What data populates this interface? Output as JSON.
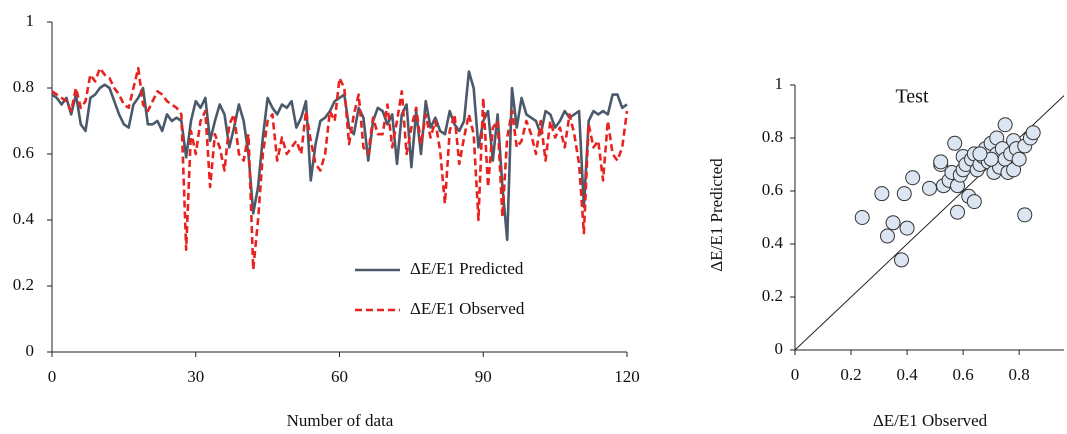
{
  "chart_data": [
    {
      "type": "line",
      "x_label": "Number of data",
      "x": [
        0,
        1,
        2,
        3,
        4,
        5,
        6,
        7,
        8,
        9,
        10,
        11,
        12,
        13,
        14,
        15,
        16,
        17,
        18,
        19,
        20,
        21,
        22,
        23,
        24,
        25,
        26,
        27,
        28,
        29,
        30,
        31,
        32,
        33,
        34,
        35,
        36,
        37,
        38,
        39,
        40,
        41,
        42,
        43,
        44,
        45,
        46,
        47,
        48,
        49,
        50,
        51,
        52,
        53,
        54,
        55,
        56,
        57,
        58,
        59,
        60,
        61,
        62,
        63,
        64,
        65,
        66,
        67,
        68,
        69,
        70,
        71,
        72,
        73,
        74,
        75,
        76,
        77,
        78,
        79,
        80,
        81,
        82,
        83,
        84,
        85,
        86,
        87,
        88,
        89,
        90,
        91,
        92,
        93,
        94,
        95,
        96,
        97,
        98,
        99,
        100,
        101,
        102,
        103,
        104,
        105,
        106,
        107,
        108,
        109,
        110,
        111,
        112,
        113,
        114,
        115,
        116,
        117,
        118,
        119,
        120
      ],
      "xlim": [
        0,
        120
      ],
      "xticks": [
        0,
        30,
        60,
        90,
        120
      ],
      "ylim": [
        0,
        1
      ],
      "yticks": [
        0,
        0.2,
        0.4,
        0.6,
        0.8,
        1
      ],
      "legend": "lower right",
      "series": [
        {
          "name": "ΔE/E1 Predicted",
          "color": "#4b5a6b",
          "line_style": "solid",
          "values": [
            0.78,
            0.77,
            0.75,
            0.77,
            0.72,
            0.78,
            0.69,
            0.67,
            0.77,
            0.78,
            0.8,
            0.81,
            0.8,
            0.76,
            0.72,
            0.69,
            0.68,
            0.75,
            0.77,
            0.8,
            0.69,
            0.69,
            0.7,
            0.67,
            0.72,
            0.7,
            0.71,
            0.7,
            0.59,
            0.7,
            0.76,
            0.74,
            0.77,
            0.64,
            0.7,
            0.75,
            0.72,
            0.62,
            0.68,
            0.75,
            0.7,
            0.6,
            0.42,
            0.5,
            0.65,
            0.77,
            0.74,
            0.72,
            0.75,
            0.74,
            0.76,
            0.68,
            0.71,
            0.76,
            0.52,
            0.63,
            0.7,
            0.71,
            0.73,
            0.76,
            0.77,
            0.78,
            0.68,
            0.66,
            0.74,
            0.71,
            0.58,
            0.7,
            0.74,
            0.73,
            0.69,
            0.72,
            0.57,
            0.72,
            0.75,
            0.56,
            0.73,
            0.6,
            0.76,
            0.68,
            0.71,
            0.67,
            0.66,
            0.73,
            0.69,
            0.67,
            0.7,
            0.85,
            0.8,
            0.62,
            0.7,
            0.73,
            0.58,
            0.72,
            0.5,
            0.34,
            0.8,
            0.68,
            0.77,
            0.72,
            0.71,
            0.7,
            0.66,
            0.73,
            0.72,
            0.68,
            0.7,
            0.73,
            0.71,
            0.72,
            0.73,
            0.44,
            0.7,
            0.73,
            0.72,
            0.73,
            0.72,
            0.78,
            0.78,
            0.74,
            0.75
          ]
        },
        {
          "name": "ΔE/E1 Observed",
          "color": "#e8231f",
          "line_style": "dashed",
          "values": [
            0.79,
            0.78,
            0.77,
            0.76,
            0.73,
            0.8,
            0.74,
            0.76,
            0.84,
            0.82,
            0.86,
            0.84,
            0.83,
            0.8,
            0.78,
            0.75,
            0.74,
            0.8,
            0.86,
            0.75,
            0.73,
            0.76,
            0.79,
            0.78,
            0.76,
            0.75,
            0.74,
            0.72,
            0.31,
            0.67,
            0.6,
            0.7,
            0.73,
            0.5,
            0.66,
            0.62,
            0.55,
            0.69,
            0.72,
            0.6,
            0.58,
            0.66,
            0.25,
            0.4,
            0.6,
            0.7,
            0.72,
            0.58,
            0.65,
            0.6,
            0.62,
            0.64,
            0.6,
            0.73,
            0.64,
            0.57,
            0.55,
            0.6,
            0.73,
            0.7,
            0.83,
            0.8,
            0.63,
            0.72,
            0.78,
            0.62,
            0.6,
            0.71,
            0.66,
            0.66,
            0.75,
            0.62,
            0.7,
            0.79,
            0.6,
            0.68,
            0.74,
            0.63,
            0.72,
            0.65,
            0.7,
            0.61,
            0.45,
            0.67,
            0.72,
            0.57,
            0.65,
            0.72,
            0.66,
            0.4,
            0.77,
            0.5,
            0.68,
            0.7,
            0.41,
            0.65,
            0.73,
            0.62,
            0.64,
            0.7,
            0.66,
            0.6,
            0.7,
            0.58,
            0.7,
            0.65,
            0.68,
            0.62,
            0.72,
            0.66,
            0.57,
            0.36,
            0.69,
            0.62,
            0.64,
            0.52,
            0.7,
            0.6,
            0.58,
            0.62,
            0.73
          ]
        }
      ]
    },
    {
      "type": "scatter",
      "title": "Test",
      "x_label": "ΔE/E1  Observed",
      "y_label": "ΔE/E1  Predicted",
      "color": "#dce6f2",
      "edge_color": "#333333",
      "xlim": [
        0,
        0.96
      ],
      "xticks": [
        0,
        0.2,
        0.4,
        0.6,
        0.8
      ],
      "ylim": [
        0,
        1
      ],
      "yticks": [
        0,
        0.2,
        0.4,
        0.6,
        0.8,
        1
      ],
      "x": [
        0.24,
        0.31,
        0.33,
        0.35,
        0.38,
        0.39,
        0.4,
        0.42,
        0.48,
        0.52,
        0.52,
        0.53,
        0.55,
        0.56,
        0.57,
        0.58,
        0.58,
        0.59,
        0.6,
        0.6,
        0.61,
        0.62,
        0.63,
        0.64,
        0.64,
        0.65,
        0.66,
        0.67,
        0.68,
        0.69,
        0.7,
        0.71,
        0.72,
        0.72,
        0.73,
        0.74,
        0.75,
        0.75,
        0.76,
        0.77,
        0.78,
        0.78,
        0.79,
        0.8,
        0.82,
        0.82,
        0.84,
        0.85,
        0.7,
        0.66
      ],
      "y": [
        0.5,
        0.59,
        0.43,
        0.48,
        0.34,
        0.59,
        0.46,
        0.65,
        0.61,
        0.7,
        0.71,
        0.62,
        0.64,
        0.67,
        0.78,
        0.52,
        0.62,
        0.66,
        0.68,
        0.73,
        0.7,
        0.58,
        0.72,
        0.74,
        0.56,
        0.68,
        0.7,
        0.73,
        0.76,
        0.71,
        0.78,
        0.67,
        0.8,
        0.74,
        0.69,
        0.76,
        0.85,
        0.72,
        0.67,
        0.74,
        0.68,
        0.79,
        0.76,
        0.72,
        0.51,
        0.77,
        0.8,
        0.82,
        0.72,
        0.74
      ]
    }
  ]
}
